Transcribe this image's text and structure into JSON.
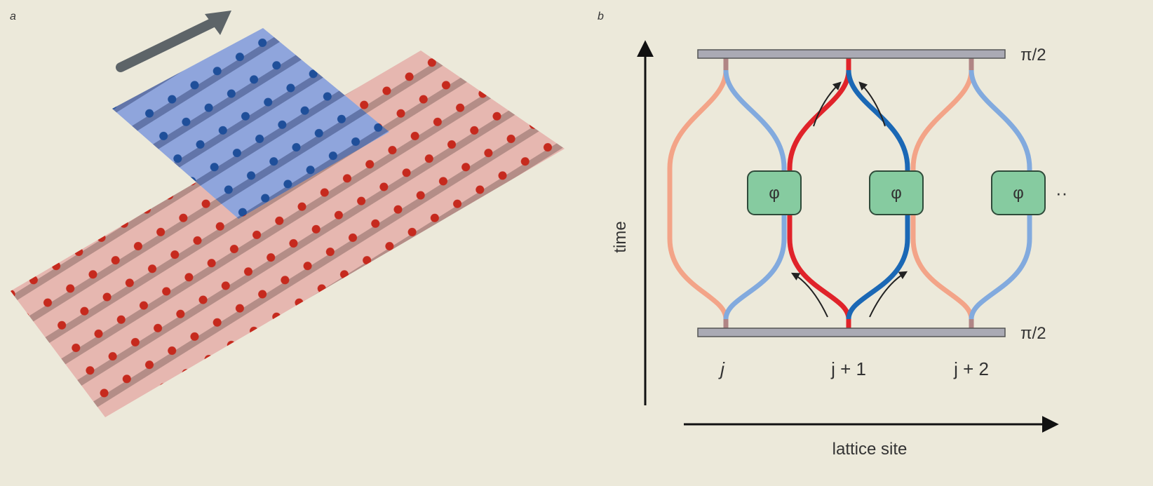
{
  "panels": {
    "a": {
      "label": "a"
    },
    "b": {
      "label": "b",
      "top_phase": "π/2",
      "bottom_phase": "π/2",
      "boxes": [
        "φ",
        "φ",
        "φ"
      ],
      "more": "··",
      "y_axis": "time",
      "x_axis": "lattice site",
      "sites": [
        "j",
        "j + 1",
        "j + 2"
      ]
    }
  }
}
